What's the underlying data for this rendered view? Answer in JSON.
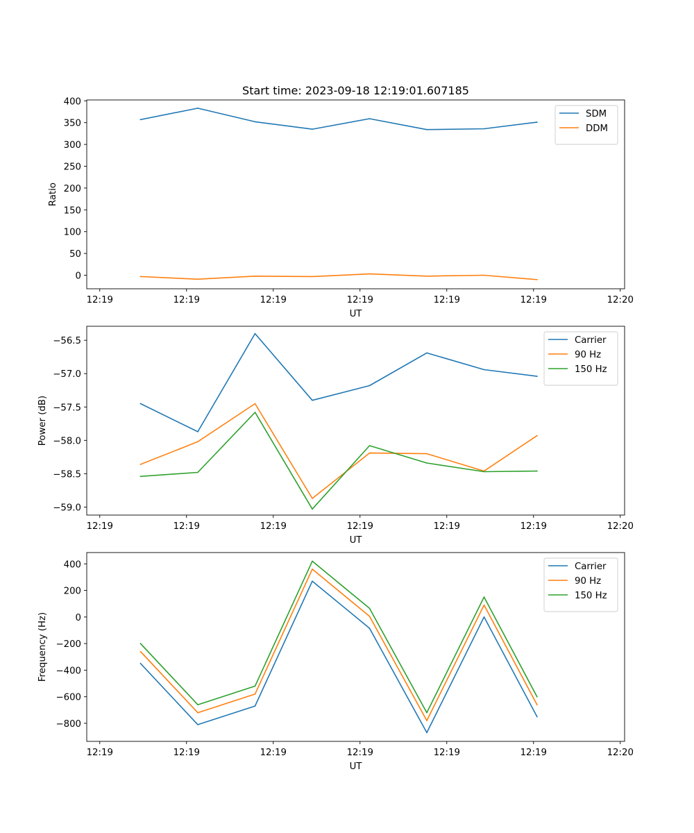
{
  "figure": {
    "title": "Start time: 2023-09-18 12:19:01.607185"
  },
  "chart_data": [
    {
      "type": "line",
      "title": "Start time: 2023-09-18 12:19:01.607185",
      "xlabel": "UT",
      "ylabel": "Ratio",
      "xlim": [
        -0.15,
        6.05
      ],
      "ylim": [
        -31,
        402
      ],
      "x_ticks": [
        {
          "value": 0,
          "label": "12:19"
        },
        {
          "value": 1,
          "label": "12:19"
        },
        {
          "value": 2,
          "label": "12:19"
        },
        {
          "value": 3,
          "label": "12:19"
        },
        {
          "value": 4,
          "label": "12:19"
        },
        {
          "value": 5,
          "label": "12:19"
        },
        {
          "value": 6,
          "label": "12:20"
        }
      ],
      "y_ticks": [
        0,
        50,
        100,
        150,
        200,
        250,
        300,
        350,
        400
      ],
      "y_tick_labels": [
        "0",
        "50",
        "100",
        "150",
        "200",
        "250",
        "300",
        "350",
        "400"
      ],
      "x": [
        0.47,
        1.13,
        1.79,
        2.45,
        3.11,
        3.77,
        4.43,
        5.04
      ],
      "legend_position": "top-right",
      "series": [
        {
          "name": "SDM",
          "color": "#1f77b4",
          "values": [
            357,
            383,
            352,
            335,
            359,
            334,
            336,
            351
          ]
        },
        {
          "name": "DDM",
          "color": "#ff7f0e",
          "values": [
            -3,
            -9,
            -2,
            -3,
            3,
            -2,
            0,
            -10
          ]
        }
      ]
    },
    {
      "type": "line",
      "xlabel": "UT",
      "ylabel": "Power (dB)",
      "xlim": [
        -0.15,
        6.05
      ],
      "ylim": [
        -59.12,
        -56.29
      ],
      "x_ticks": [
        {
          "value": 0,
          "label": "12:19"
        },
        {
          "value": 1,
          "label": "12:19"
        },
        {
          "value": 2,
          "label": "12:19"
        },
        {
          "value": 3,
          "label": "12:19"
        },
        {
          "value": 4,
          "label": "12:19"
        },
        {
          "value": 5,
          "label": "12:19"
        },
        {
          "value": 6,
          "label": "12:20"
        }
      ],
      "y_ticks": [
        -59.0,
        -58.5,
        -58.0,
        -57.5,
        -57.0,
        -56.5
      ],
      "y_tick_labels": [
        "−59.0",
        "−58.5",
        "−58.0",
        "−57.5",
        "−57.0",
        "−56.5"
      ],
      "x": [
        0.47,
        1.13,
        1.79,
        2.45,
        3.11,
        3.77,
        4.43,
        5.04
      ],
      "legend_position": "top-right",
      "series": [
        {
          "name": "Carrier",
          "color": "#1f77b4",
          "values": [
            -57.45,
            -57.87,
            -56.4,
            -57.4,
            -57.18,
            -56.69,
            -56.94,
            -57.04
          ]
        },
        {
          "name": "90 Hz",
          "color": "#ff7f0e",
          "values": [
            -58.36,
            -58.02,
            -57.45,
            -58.87,
            -58.19,
            -58.2,
            -58.46,
            -57.93
          ]
        },
        {
          "name": "150 Hz",
          "color": "#2ca02c",
          "values": [
            -58.54,
            -58.48,
            -57.58,
            -59.03,
            -58.08,
            -58.34,
            -58.47,
            -58.46
          ]
        }
      ]
    },
    {
      "type": "line",
      "xlabel": "UT",
      "ylabel": "Frequency (Hz)",
      "xlim": [
        -0.15,
        6.05
      ],
      "ylim": [
        -936,
        485
      ],
      "x_ticks": [
        {
          "value": 0,
          "label": "12:19"
        },
        {
          "value": 1,
          "label": "12:19"
        },
        {
          "value": 2,
          "label": "12:19"
        },
        {
          "value": 3,
          "label": "12:19"
        },
        {
          "value": 4,
          "label": "12:19"
        },
        {
          "value": 5,
          "label": "12:19"
        },
        {
          "value": 6,
          "label": "12:20"
        }
      ],
      "y_ticks": [
        -800,
        -600,
        -400,
        -200,
        0,
        200,
        400
      ],
      "y_tick_labels": [
        "−800",
        "−600",
        "−400",
        "−200",
        "0",
        "200",
        "400"
      ],
      "x": [
        0.47,
        1.13,
        1.79,
        2.45,
        3.11,
        3.77,
        4.43,
        5.04
      ],
      "legend_position": "top-right",
      "series": [
        {
          "name": "Carrier",
          "color": "#1f77b4",
          "values": [
            -350,
            -810,
            -670,
            270,
            -85,
            -870,
            0,
            -750
          ]
        },
        {
          "name": "90 Hz",
          "color": "#ff7f0e",
          "values": [
            -260,
            -720,
            -580,
            360,
            5,
            -780,
            90,
            -660
          ]
        },
        {
          "name": "150 Hz",
          "color": "#2ca02c",
          "values": [
            -200,
            -660,
            -520,
            420,
            65,
            -720,
            150,
            -600
          ]
        }
      ]
    }
  ]
}
